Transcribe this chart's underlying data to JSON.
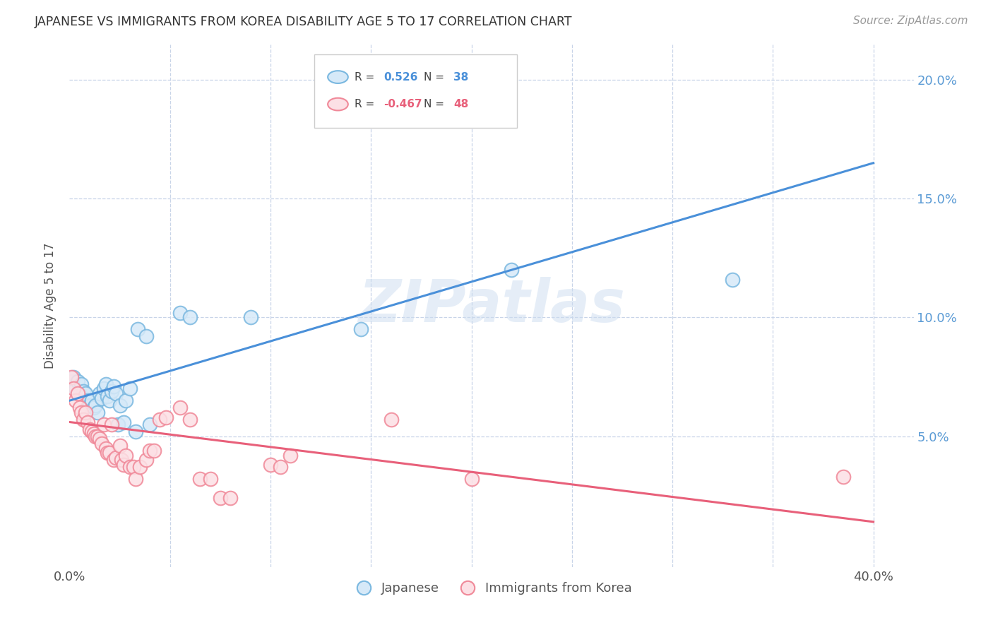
{
  "title": "JAPANESE VS IMMIGRANTS FROM KOREA DISABILITY AGE 5 TO 17 CORRELATION CHART",
  "source": "Source: ZipAtlas.com",
  "ylabel": "Disability Age 5 to 17",
  "watermark": "ZIPatlas",
  "xlim": [
    0.0,
    0.42
  ],
  "ylim": [
    -0.005,
    0.215
  ],
  "legend_japanese_R": "0.526",
  "legend_japanese_N": "38",
  "legend_korea_R": "-0.467",
  "legend_korea_N": "48",
  "japanese_color": "#7ab8e0",
  "japan_face_color": "#d6e9f8",
  "korea_color": "#f08898",
  "korea_face_color": "#fce0e5",
  "japanese_line_color": "#4a90d9",
  "korea_line_color": "#e8607a",
  "background_color": "#ffffff",
  "grid_color": "#c8d4e8",
  "japanese_regression": [
    0.0,
    0.4,
    0.065,
    0.165
  ],
  "korea_regression": [
    0.0,
    0.4,
    0.056,
    0.014
  ],
  "japanese_points": [
    [
      0.001,
      0.073
    ],
    [
      0.002,
      0.075
    ],
    [
      0.003,
      0.07
    ],
    [
      0.004,
      0.073
    ],
    [
      0.005,
      0.068
    ],
    [
      0.006,
      0.072
    ],
    [
      0.007,
      0.069
    ],
    [
      0.008,
      0.068
    ],
    [
      0.009,
      0.065
    ],
    [
      0.01,
      0.063
    ],
    [
      0.011,
      0.065
    ],
    [
      0.012,
      0.062
    ],
    [
      0.013,
      0.063
    ],
    [
      0.014,
      0.06
    ],
    [
      0.015,
      0.068
    ],
    [
      0.016,
      0.066
    ],
    [
      0.017,
      0.07
    ],
    [
      0.018,
      0.072
    ],
    [
      0.019,
      0.067
    ],
    [
      0.02,
      0.065
    ],
    [
      0.021,
      0.069
    ],
    [
      0.022,
      0.071
    ],
    [
      0.023,
      0.068
    ],
    [
      0.024,
      0.055
    ],
    [
      0.025,
      0.063
    ],
    [
      0.027,
      0.056
    ],
    [
      0.028,
      0.065
    ],
    [
      0.03,
      0.07
    ],
    [
      0.033,
      0.052
    ],
    [
      0.034,
      0.095
    ],
    [
      0.038,
      0.092
    ],
    [
      0.04,
      0.055
    ],
    [
      0.055,
      0.102
    ],
    [
      0.06,
      0.1
    ],
    [
      0.09,
      0.1
    ],
    [
      0.145,
      0.095
    ],
    [
      0.22,
      0.12
    ],
    [
      0.33,
      0.116
    ]
  ],
  "korea_points": [
    [
      0.001,
      0.075
    ],
    [
      0.002,
      0.07
    ],
    [
      0.003,
      0.065
    ],
    [
      0.004,
      0.068
    ],
    [
      0.005,
      0.062
    ],
    [
      0.006,
      0.06
    ],
    [
      0.007,
      0.057
    ],
    [
      0.008,
      0.06
    ],
    [
      0.009,
      0.056
    ],
    [
      0.01,
      0.053
    ],
    [
      0.011,
      0.052
    ],
    [
      0.012,
      0.051
    ],
    [
      0.013,
      0.05
    ],
    [
      0.014,
      0.05
    ],
    [
      0.015,
      0.049
    ],
    [
      0.016,
      0.047
    ],
    [
      0.017,
      0.055
    ],
    [
      0.018,
      0.045
    ],
    [
      0.019,
      0.043
    ],
    [
      0.02,
      0.043
    ],
    [
      0.021,
      0.055
    ],
    [
      0.022,
      0.04
    ],
    [
      0.023,
      0.041
    ],
    [
      0.025,
      0.046
    ],
    [
      0.026,
      0.04
    ],
    [
      0.027,
      0.038
    ],
    [
      0.028,
      0.042
    ],
    [
      0.03,
      0.037
    ],
    [
      0.032,
      0.037
    ],
    [
      0.033,
      0.032
    ],
    [
      0.035,
      0.037
    ],
    [
      0.038,
      0.04
    ],
    [
      0.04,
      0.044
    ],
    [
      0.042,
      0.044
    ],
    [
      0.045,
      0.057
    ],
    [
      0.048,
      0.058
    ],
    [
      0.055,
      0.062
    ],
    [
      0.06,
      0.057
    ],
    [
      0.065,
      0.032
    ],
    [
      0.07,
      0.032
    ],
    [
      0.075,
      0.024
    ],
    [
      0.08,
      0.024
    ],
    [
      0.1,
      0.038
    ],
    [
      0.105,
      0.037
    ],
    [
      0.11,
      0.042
    ],
    [
      0.16,
      0.057
    ],
    [
      0.2,
      0.032
    ],
    [
      0.385,
      0.033
    ]
  ]
}
